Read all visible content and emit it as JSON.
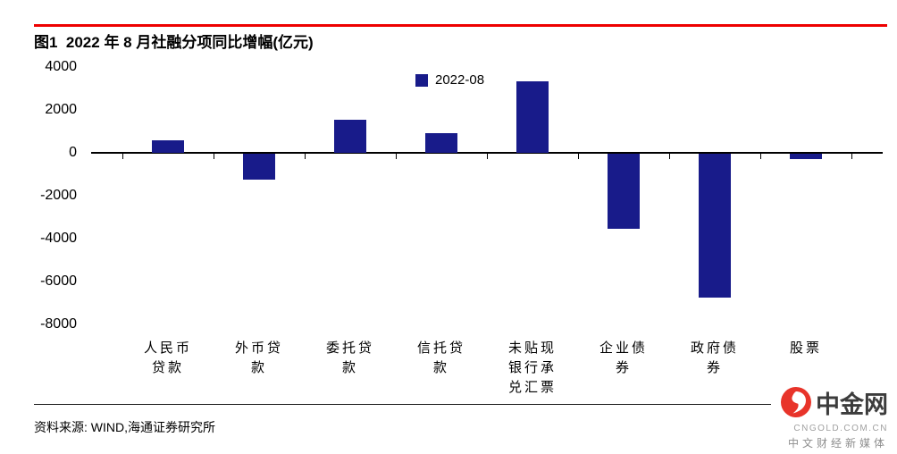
{
  "header": {
    "title": "图1  2022 年 8 月社融分项同比增幅(亿元)"
  },
  "legend": {
    "label": "2022-08"
  },
  "chart_data": {
    "type": "bar",
    "title": "2022 年 8 月社融分项同比增幅(亿元)",
    "figure_label": "图1",
    "unit": "亿元",
    "categories": [
      "人民币贷款",
      "外币贷款",
      "委托贷款",
      "信托贷款",
      "未贴现银行承兑汇票",
      "企业债券",
      "政府债券",
      "股票"
    ],
    "category_lines": [
      [
        "人民币",
        "贷款"
      ],
      [
        "外币贷",
        "款"
      ],
      [
        "委托贷",
        "款"
      ],
      [
        "信托贷",
        "款"
      ],
      [
        "未贴现",
        "银行承",
        "兑汇票"
      ],
      [
        "企业债",
        "券"
      ],
      [
        "政府债",
        "券"
      ],
      [
        "股票"
      ]
    ],
    "series": [
      {
        "name": "2022-08",
        "values": [
          600,
          -1200,
          1550,
          900,
          3350,
          -3500,
          -6700,
          -250
        ]
      }
    ],
    "ylim": [
      -8000,
      4000
    ],
    "yticks": [
      4000,
      2000,
      0,
      -2000,
      -4000,
      -6000,
      -8000
    ],
    "grid": false,
    "legend_position": "top-center",
    "bar_color": "#181b8a"
  },
  "footer": {
    "source": "资料来源: WIND,海通证券研究所"
  },
  "watermark": {
    "name": "中金网",
    "domain": "CNGOLD.COM.CN",
    "tagline": "中文财经新媒体"
  },
  "colors": {
    "rule_red": "#ee0000",
    "bar_navy": "#181b8a",
    "logo_red": "#e8342a",
    "axis": "#000000"
  }
}
